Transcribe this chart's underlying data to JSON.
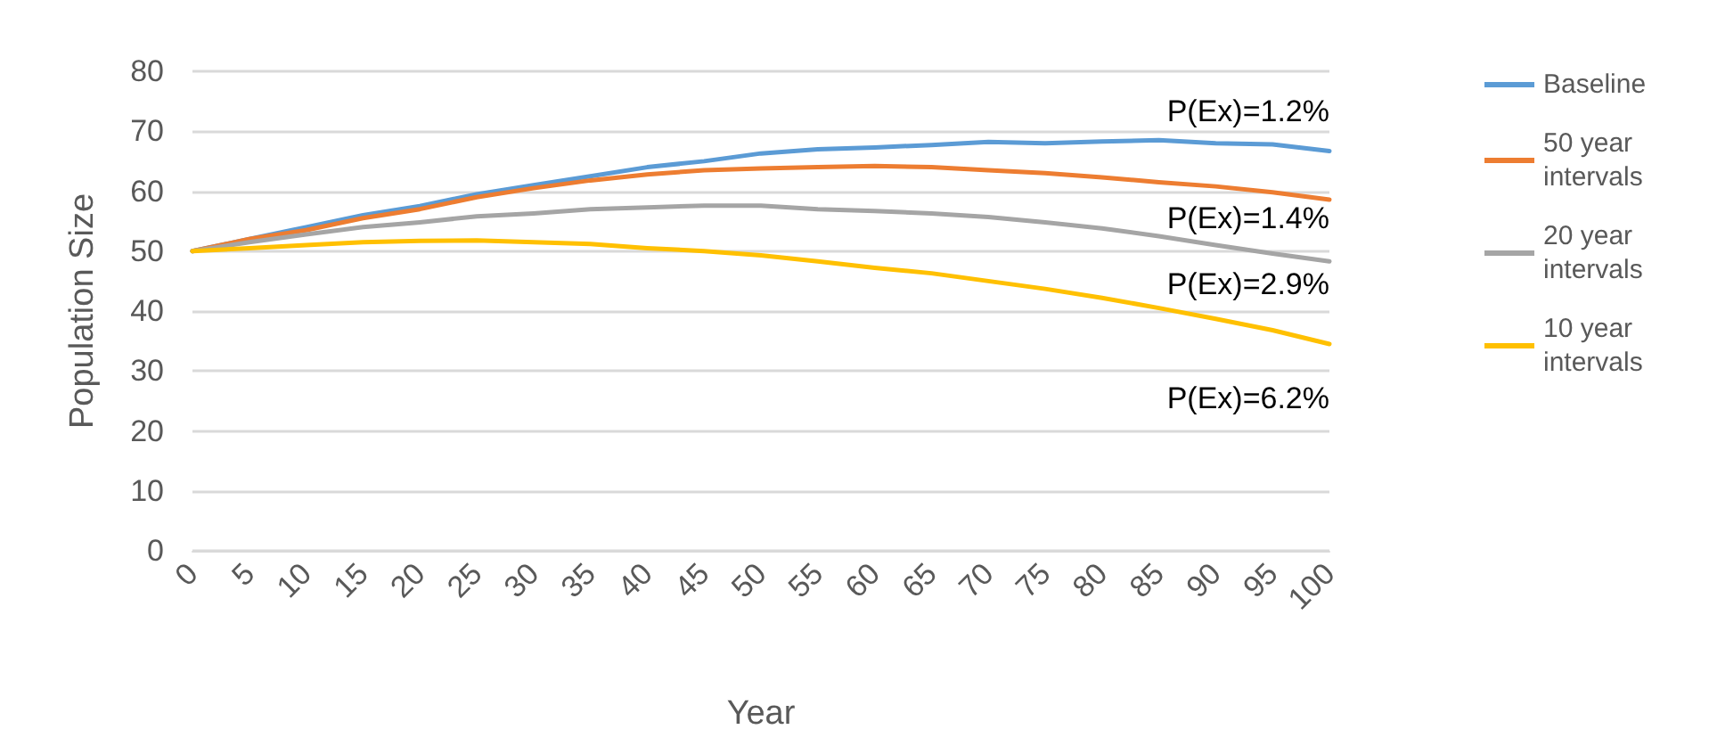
{
  "chart_data": {
    "type": "line",
    "xlabel": "Year",
    "ylabel": "Population Size",
    "x": [
      0,
      5,
      10,
      15,
      20,
      25,
      30,
      35,
      40,
      45,
      50,
      55,
      60,
      65,
      70,
      75,
      80,
      85,
      90,
      95,
      100
    ],
    "series": [
      {
        "name": "Baseline",
        "color": "#5b9bd5",
        "values": [
          50,
          52,
          54,
          56,
          57.5,
          59.5,
          61,
          62.5,
          64,
          65,
          66.3,
          67,
          67.3,
          67.7,
          68.2,
          68,
          68.3,
          68.5,
          68,
          67.8,
          66.7
        ]
      },
      {
        "name": "50 year intervals",
        "color": "#ed7d31",
        "values": [
          50,
          52,
          53.5,
          55.5,
          57,
          59,
          60.5,
          61.8,
          62.8,
          63.5,
          63.8,
          64,
          64.2,
          64,
          63.5,
          63,
          62.3,
          61.5,
          60.8,
          59.8,
          58.6
        ]
      },
      {
        "name": "20 year intervals",
        "color": "#a5a5a5",
        "values": [
          50,
          51.5,
          52.8,
          54,
          54.8,
          55.8,
          56.3,
          57,
          57.3,
          57.6,
          57.6,
          57,
          56.7,
          56.3,
          55.7,
          54.8,
          53.8,
          52.5,
          51,
          49.6,
          48.3
        ]
      },
      {
        "name": "10 year intervals",
        "color": "#ffc000",
        "values": [
          50,
          50.5,
          51,
          51.5,
          51.7,
          51.8,
          51.5,
          51.2,
          50.5,
          50,
          49.3,
          48.3,
          47.2,
          46.3,
          45,
          43.7,
          42.2,
          40.5,
          38.7,
          36.8,
          34.5
        ]
      }
    ],
    "xlim": [
      0,
      100
    ],
    "xticks": [
      0,
      5,
      10,
      15,
      20,
      25,
      30,
      35,
      40,
      45,
      50,
      55,
      60,
      65,
      70,
      75,
      80,
      85,
      90,
      95,
      100
    ],
    "ylim": [
      0,
      80
    ],
    "yticks": [
      0,
      10,
      20,
      30,
      40,
      50,
      60,
      70,
      80
    ],
    "annotations": [
      "P(Ex)=1.2%",
      "P(Ex)=1.4%",
      "P(Ex)=2.9%",
      "P(Ex)=6.2%"
    ],
    "grid": "y",
    "legend": "right",
    "marker": "none",
    "line_style": "solid"
  }
}
